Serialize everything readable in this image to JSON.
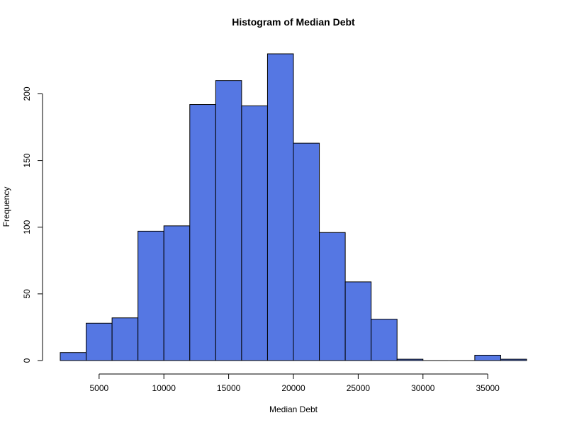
{
  "chart_data": {
    "type": "bar",
    "title": "Histogram of Median Debt",
    "xlabel": "Median Debt",
    "ylabel": "Frequency",
    "bar_color": "#5577e3",
    "bin_edges": [
      2000,
      4000,
      6000,
      8000,
      10000,
      12000,
      14000,
      16000,
      18000,
      20000,
      22000,
      24000,
      26000,
      28000,
      30000,
      32000,
      34000,
      36000,
      38000
    ],
    "values": [
      6,
      28,
      32,
      97,
      101,
      192,
      210,
      191,
      230,
      163,
      96,
      59,
      31,
      1,
      0,
      0,
      4,
      1
    ],
    "xlim": [
      2000,
      38000
    ],
    "ylim": [
      0,
      230
    ],
    "x_ticks": [
      5000,
      10000,
      15000,
      20000,
      25000,
      30000,
      35000
    ],
    "x_tick_labels": [
      "5000",
      "10000",
      "15000",
      "20000",
      "25000",
      "30000",
      "35000"
    ],
    "y_ticks": [
      0,
      50,
      100,
      150,
      200
    ],
    "y_tick_labels": [
      "0",
      "50",
      "100",
      "150",
      "200"
    ],
    "grid": false,
    "legend": "none"
  }
}
